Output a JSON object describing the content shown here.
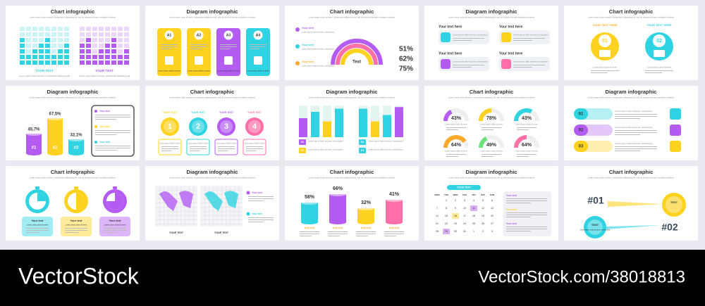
{
  "slides": [
    {
      "title": "Chart infographic",
      "subtitle": "Lorem ipsum dolor sit amet, consectetur adipiscing elit, sed do eiusmod tempor incididunt ut labore",
      "labels": [
        "YOUR TEXT",
        "YOUR TEXT"
      ],
      "note": "Lorem ipsum dolor sit amet, consectetur adipiscing elit"
    },
    {
      "title": "Diagram infographic",
      "subtitle": "Lorem ipsum dolor sit amet, consectetur adipiscing elit, sed do eiusmod tempor incididunt ut labore",
      "cards": [
        "A1",
        "A2",
        "A3",
        "A4"
      ],
      "note": "Lorem ipsum dolor sit amet"
    },
    {
      "title": "Chart infographic",
      "subtitle": "Lorem ipsum dolor sit amet, consectetur adipiscing elit, sed do eiusmod tempor incididunt ut labore",
      "items": [
        "Your text",
        "Your text",
        "Your text"
      ],
      "center": "Text",
      "percents": [
        "51%",
        "62%",
        "75%"
      ],
      "note": "Lorem ipsum dolor sit amet, consectetur"
    },
    {
      "title": "Diagram infographic",
      "subtitle": "Lorem ipsum dolor sit amet, consectetur adipiscing elit, sed do eiusmod tempor incididunt ut labore",
      "items": [
        "Your text here",
        "Your text here",
        "Your text here",
        "Your text here"
      ],
      "note": "Lorem ipsum dolor sit amet, consectetur"
    },
    {
      "title": "Chart infographic",
      "subtitle": "Lorem ipsum dolor sit amet, consectetur adipiscing elit, sed do eiusmod tempor incididunt ut labore",
      "items": [
        "YOUR TEXT HERE",
        "YOUR TEXT HERE"
      ],
      "numbers": [
        "01",
        "02"
      ],
      "note": "Lorem ipsum dolor sit amet"
    },
    {
      "title": "Diagram infographic",
      "subtitle": "Lorem ipsum dolor sit amet, consectetur adipiscing elit, sed do eiusmod tempor incididunt ut labore",
      "percents": [
        "45,7%",
        "67,5%",
        "32,1%"
      ],
      "numbers": [
        "#1",
        "#2",
        "#3"
      ],
      "items": [
        "Your text",
        "Your text",
        "Your text"
      ],
      "note": "Lorem ipsum dolor sit amet, consectetur"
    },
    {
      "title": "Chart infographic",
      "subtitle": "Lorem ipsum dolor sit amet, consectetur adipiscing elit, sed do eiusmod tempor incididunt ut labore",
      "items": [
        "YOUR TEXT",
        "YOUR TEXT",
        "YOUR TEXT",
        "YOUR TEXT"
      ],
      "numbers": [
        "1",
        "2",
        "3",
        "4"
      ],
      "note": "Lorem ipsum dolor sit amet"
    },
    {
      "title": "Diagram infographic",
      "subtitle": "Lorem ipsum dolor sit amet, consectetur adipiscing elit, sed do eiusmod tempor incididunt ut labore",
      "numbers": [
        "01",
        "02",
        "03",
        "04"
      ],
      "note": "Lorem ipsum dolor sit amet, consectetur"
    },
    {
      "title": "Chart infographic",
      "subtitle": "Lorem ipsum dolor sit amet, consectetur adipiscing elit, sed do eiusmod tempor incididunt ut labore",
      "percents": [
        "43%",
        "78%",
        "43%",
        "64%",
        "49%",
        "64%"
      ],
      "note": "Lorem ipsum dolor sit amet"
    },
    {
      "title": "Diagram infographic",
      "subtitle": "Lorem ipsum dolor sit amet, consectetur adipiscing elit, sed do eiusmod tempor incididunt ut labore",
      "numbers": [
        "01",
        "02",
        "03"
      ],
      "note": "Lorem ipsum dolor sit amet, consectetur"
    },
    {
      "title": "Chart infographic",
      "subtitle": "Lorem ipsum dolor sit amet, consectetur adipiscing elit, sed do eiusmod tempor incididunt ut labore",
      "items": [
        "Your text",
        "Your text",
        "Your text"
      ],
      "note": "Lorem ipsum dolor sit amet"
    },
    {
      "title": "Diagram infographic",
      "subtitle": "Lorem ipsum dolor sit amet, consectetur adipiscing elit, sed do eiusmod tempor incididunt ut labore",
      "items": [
        "Your text",
        "Your text"
      ],
      "labels": [
        "YOUR TEXT",
        "YOUR TEXT"
      ],
      "note": "Lorem ipsum dolor sit amet, consectetur"
    },
    {
      "title": "Chart infographic",
      "subtitle": "Lorem ipsum dolor sit amet, consectetur adipiscing elit, sed do eiusmod tempor incididunt ut labore",
      "percents": [
        "58%",
        "66%",
        "32%",
        "41%"
      ],
      "items": [
        "Your text",
        "Your text",
        "Your text",
        "Your text"
      ],
      "note": "Lorem ipsum dolor sit amet"
    },
    {
      "title": "Diagram infographic",
      "subtitle": "Lorem ipsum dolor sit amet, consectetur adipiscing elit, sed do eiusmod tempor incididunt ut labore",
      "header": "YOUR TEXT",
      "days": [
        "MON",
        "TUE",
        "WED",
        "THU",
        "FRI",
        "SAT",
        "SUN"
      ],
      "weeks": [
        [
          null,
          "1",
          "2",
          "3",
          "4",
          "5",
          "6"
        ],
        [
          "7",
          "8",
          "9",
          "10",
          "11",
          "12",
          "13"
        ],
        [
          "14",
          "15",
          "16",
          "17",
          "18",
          "19",
          "20"
        ],
        [
          "21",
          "22",
          "23",
          "24",
          "25",
          "26",
          "27"
        ],
        [
          "28",
          "29",
          "30",
          "31",
          "1",
          "2",
          "3"
        ]
      ],
      "items": [
        "Your text",
        "Your text",
        "Your text"
      ],
      "note": "Lorem ipsum dolor sit amet"
    },
    {
      "title": "Chart infographic",
      "subtitle": "Lorem ipsum dolor sit amet, consectetur adipiscing elit, sed do eiusmod tempor incididunt ut labore",
      "numbers": [
        "#01",
        "#02"
      ],
      "items": [
        "TEXT",
        "TEXT"
      ],
      "note": "Lorem ipsum dolor sit amet, consectetur"
    }
  ],
  "footer": {
    "brand": "VectorStock",
    "url": "VectorStock.com/38018813"
  }
}
